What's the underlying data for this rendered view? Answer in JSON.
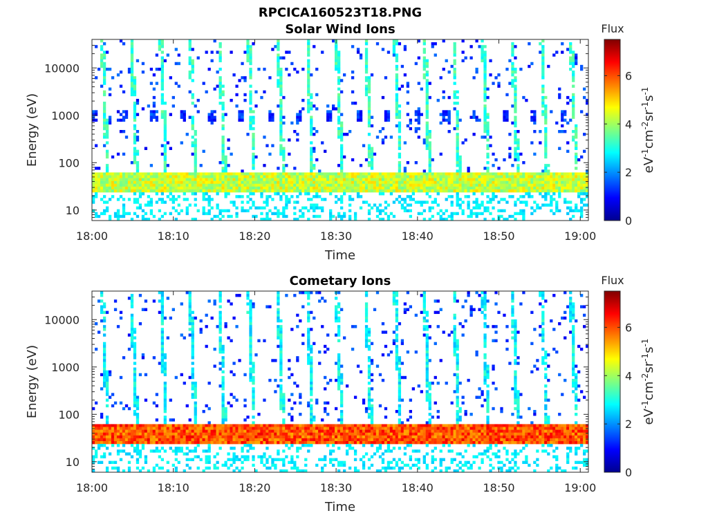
{
  "figure": {
    "title": "RPCICA160523T18.PNG"
  },
  "colorbar": {
    "label_html": [
      "eV",
      "-1",
      "cm",
      "-2",
      "sr",
      "-1",
      "s",
      "-1"
    ],
    "title": "Flux",
    "ticks": [
      "0",
      "2",
      "4",
      "6"
    ],
    "range": [
      0,
      7.5
    ],
    "colormap": "jet"
  },
  "chart_data": [
    {
      "type": "heatmap",
      "title": "Solar Wind Ions",
      "xlabel": "Time",
      "ylabel": "Energy (eV)",
      "x_ticks": [
        "18:00",
        "18:10",
        "18:20",
        "18:30",
        "18:40",
        "18:50",
        "19:00"
      ],
      "y_ticks": [
        "10",
        "100",
        "1000",
        "10000"
      ],
      "y_scale": "log",
      "ylim": [
        6,
        40000
      ],
      "xlim": [
        "18:00",
        "19:01"
      ],
      "band_energy_range_eV": [
        25,
        60
      ],
      "band_flux": 4.3,
      "bursts_every_min": 3.6,
      "burst_flux_peak": 3.2,
      "bright_spot_energy_eV": 1000
    },
    {
      "type": "heatmap",
      "title": "Cometary Ions",
      "xlabel": "Time",
      "ylabel": "Energy (eV)",
      "x_ticks": [
        "18:00",
        "18:10",
        "18:20",
        "18:30",
        "18:40",
        "18:50",
        "19:00"
      ],
      "y_ticks": [
        "10",
        "100",
        "1000",
        "10000"
      ],
      "y_scale": "log",
      "ylim": [
        6,
        40000
      ],
      "xlim": [
        "18:00",
        "19:01"
      ],
      "band_energy_range_eV": [
        25,
        60
      ],
      "band_flux": 6.0,
      "bursts_every_min": 3.6,
      "burst_flux_peak": 2.8
    }
  ]
}
